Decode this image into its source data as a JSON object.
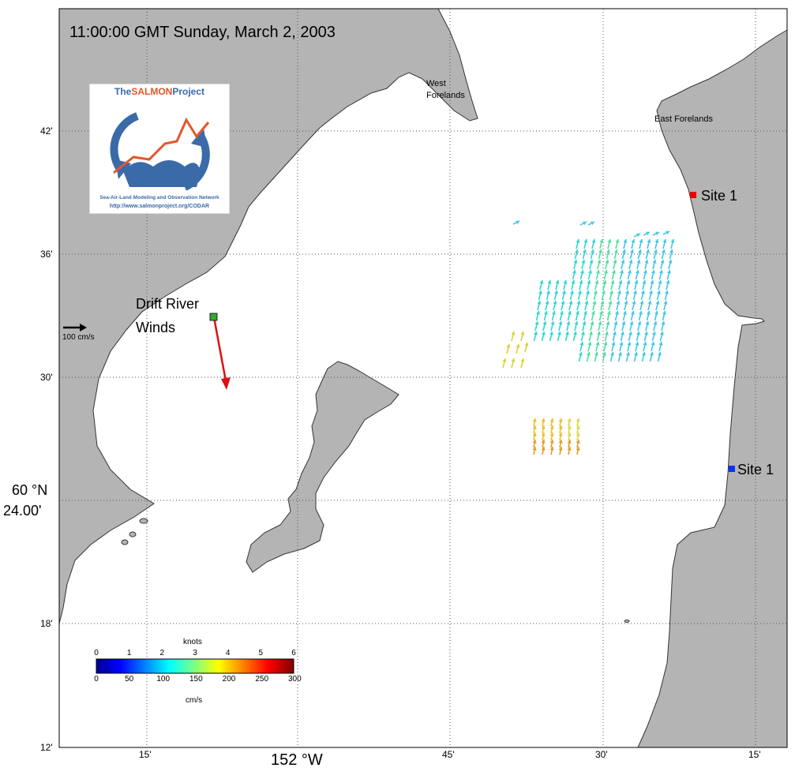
{
  "map": {
    "timestamp": "11:00:00 GMT Sunday, March 2, 2003",
    "lat_ticks": [
      "42'",
      "36'",
      "30'",
      "18'",
      "12'"
    ],
    "lat_major": [
      "60 °N",
      "24.00'"
    ],
    "lon_ticks": [
      "15'",
      "45'",
      "30'",
      "15'"
    ],
    "lon_major": "152 °W",
    "colors": {
      "land": "#b4b4b4",
      "water": "#ffffff",
      "grid": "#555555"
    }
  },
  "places": {
    "west_forelands": [
      "West",
      "Forelands"
    ],
    "east_forelands": "East Forelands"
  },
  "sites": [
    {
      "label": "Site 1",
      "color": "#ee0000"
    },
    {
      "label": "Site 1",
      "color": "#0033ff"
    }
  ],
  "wind": {
    "label_line1": "Drift River",
    "label_line2": "Winds",
    "marker_color": "#33aa33",
    "arrow_color": "#dd1111"
  },
  "scale_arrow": {
    "label": "100 cm/s"
  },
  "colorbar": {
    "top_title": "knots",
    "top_ticks": [
      "0",
      "1",
      "2",
      "3",
      "4",
      "5",
      "6"
    ],
    "bottom_ticks": [
      "0",
      "50",
      "100",
      "150",
      "200",
      "250",
      "300"
    ],
    "bottom_title": "cm/s"
  },
  "logo": {
    "title_part1": "The",
    "title_part2": "SALMON",
    "title_part3": "Project",
    "subtitle": "Sea-Air-Land Modeling and Observation Network",
    "url": "http://www.salmonproject.org/CODAR"
  }
}
